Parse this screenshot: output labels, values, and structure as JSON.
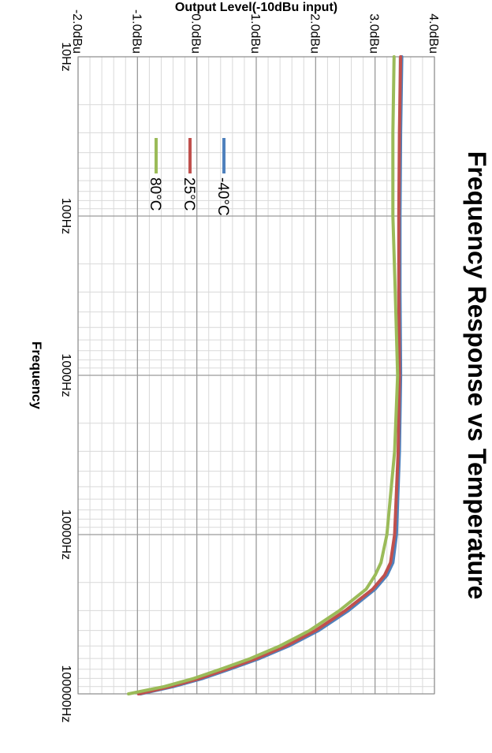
{
  "chart_data": {
    "type": "line",
    "title": "Frequency Response vs Temperature",
    "xlabel": "Frequency",
    "ylabel": "Output Level(-10dBu input)",
    "x_scale": "log",
    "xlim": [
      10,
      100000
    ],
    "ylim": [
      -2,
      4
    ],
    "x_ticks": [
      "10Hz",
      "100Hz",
      "1000Hz",
      "10000Hz",
      "100000Hz"
    ],
    "y_ticks": [
      "4.0dBu",
      "3.0dBu",
      "2.0dBu",
      "1.0dBu",
      "0.0dBu",
      "-1.0dBu",
      "-2.0dBu"
    ],
    "grid": true,
    "legend_position": "lower-left",
    "series": [
      {
        "name": "-40°C",
        "color": "#4f81bd",
        "points": [
          [
            10,
            3.45
          ],
          [
            30,
            3.43
          ],
          [
            100,
            3.42
          ],
          [
            300,
            3.42
          ],
          [
            1000,
            3.43
          ],
          [
            3000,
            3.41
          ],
          [
            10000,
            3.36
          ],
          [
            15000,
            3.3
          ],
          [
            18000,
            3.2
          ],
          [
            22000,
            3.0
          ],
          [
            30000,
            2.55
          ],
          [
            40000,
            2.05
          ],
          [
            50000,
            1.55
          ],
          [
            60000,
            1.05
          ],
          [
            70000,
            0.55
          ],
          [
            80000,
            0.1
          ],
          [
            90000,
            -0.4
          ],
          [
            100000,
            -0.95
          ]
        ]
      },
      {
        "name": "25°C",
        "color": "#c0504d",
        "points": [
          [
            10,
            3.43
          ],
          [
            30,
            3.41
          ],
          [
            100,
            3.4
          ],
          [
            300,
            3.4
          ],
          [
            1000,
            3.41
          ],
          [
            3000,
            3.39
          ],
          [
            10000,
            3.33
          ],
          [
            15000,
            3.26
          ],
          [
            18000,
            3.16
          ],
          [
            22000,
            2.96
          ],
          [
            30000,
            2.5
          ],
          [
            40000,
            2.0
          ],
          [
            50000,
            1.5
          ],
          [
            60000,
            1.0
          ],
          [
            70000,
            0.5
          ],
          [
            80000,
            0.05
          ],
          [
            90000,
            -0.45
          ],
          [
            100000,
            -0.98
          ]
        ]
      },
      {
        "name": "80°C",
        "color": "#9bbb59",
        "points": [
          [
            10,
            3.32
          ],
          [
            30,
            3.3
          ],
          [
            100,
            3.3
          ],
          [
            300,
            3.34
          ],
          [
            1000,
            3.38
          ],
          [
            3000,
            3.33
          ],
          [
            10000,
            3.2
          ],
          [
            15000,
            3.1
          ],
          [
            18000,
            3.0
          ],
          [
            22000,
            2.85
          ],
          [
            30000,
            2.4
          ],
          [
            40000,
            1.9
          ],
          [
            50000,
            1.4
          ],
          [
            60000,
            0.9
          ],
          [
            70000,
            0.4
          ],
          [
            80000,
            -0.05
          ],
          [
            90000,
            -0.55
          ],
          [
            100000,
            -1.15
          ]
        ]
      }
    ]
  }
}
